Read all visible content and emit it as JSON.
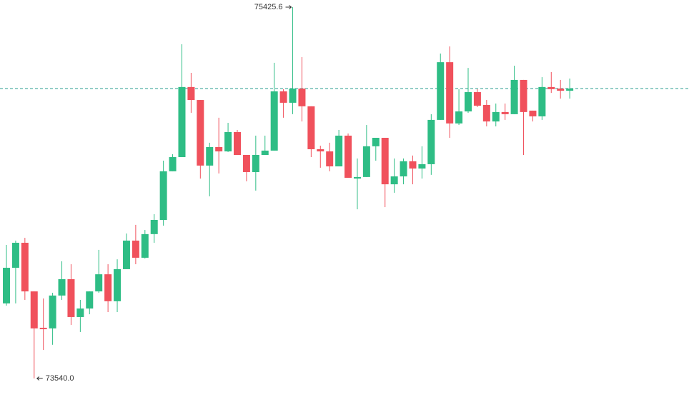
{
  "chart_data": {
    "type": "candlestick",
    "up_color": "#2ebd85",
    "down_color": "#f0515c",
    "last_price_line": true,
    "high_annotation": "75425.6",
    "low_annotation": "73540.0",
    "open": [
      73921,
      74102,
      74229,
      73982,
      73797,
      73794,
      73961,
      74044,
      73852,
      73895,
      73982,
      74069,
      73932,
      74095,
      74240,
      74153,
      74273,
      74345,
      74592,
      74664,
      75020,
      74954,
      74621,
      74715,
      74693,
      74791,
      74675,
      74588,
      74675,
      74697,
      74998,
      74940,
      75012,
      74922,
      74704,
      74693,
      74617,
      74773,
      74555,
      74563,
      74719,
      74762,
      74526,
      74566,
      74643,
      74606,
      74628,
      74853,
      75146,
      74835,
      74896,
      74994,
      74929,
      74845,
      74893,
      74882,
      75056,
      74900,
      74871,
      75020,
      75012,
      75001
    ],
    "high": [
      74218,
      74240,
      74254,
      73982,
      73946,
      73975,
      74135,
      74120,
      73939,
      73982,
      74193,
      74120,
      74145,
      74276,
      74320,
      74294,
      74374,
      74646,
      74679,
      75237,
      75092,
      74954,
      74737,
      74864,
      74838,
      74802,
      74675,
      74773,
      74773,
      75143,
      75009,
      75425.6,
      75172,
      74922,
      74722,
      74737,
      74802,
      74784,
      74657,
      74827,
      74762,
      74762,
      74657,
      74657,
      74672,
      74719,
      74882,
      75190,
      75226,
      75009,
      75117,
      75009,
      74954,
      74936,
      74936,
      75128,
      75056,
      74900,
      75070,
      75096,
      75056,
      75063
    ],
    "low": [
      73910,
      73921,
      73939,
      73540,
      73685,
      73711,
      73939,
      73812,
      73776,
      73866,
      73975,
      73877,
      73877,
      74095,
      74120,
      74149,
      74229,
      74316,
      74592,
      74664,
      74889,
      74555,
      74465,
      74581,
      74690,
      74675,
      74541,
      74494,
      74675,
      74697,
      74864,
      74882,
      74845,
      74664,
      74610,
      74592,
      74617,
      74559,
      74399,
      74563,
      74646,
      74410,
      74483,
      74526,
      74526,
      74555,
      74574,
      74853,
      74762,
      74827,
      74889,
      74918,
      74820,
      74820,
      74853,
      74882,
      74675,
      74845,
      74853,
      74990,
      74961,
      74961
    ],
    "close": [
      74102,
      74229,
      73982,
      73794,
      73790,
      73961,
      74044,
      73852,
      73895,
      73982,
      74069,
      73932,
      74095,
      74240,
      74153,
      74273,
      74345,
      74592,
      74664,
      75020,
      74954,
      74621,
      74715,
      74693,
      74791,
      74675,
      74588,
      74675,
      74697,
      74998,
      74940,
      75012,
      74922,
      74704,
      74693,
      74617,
      74773,
      74559,
      74563,
      74719,
      74762,
      74526,
      74566,
      74643,
      74606,
      74628,
      74853,
      75146,
      74835,
      74896,
      74994,
      74925,
      74845,
      74893,
      74882,
      75056,
      74893,
      74871,
      75020,
      75009,
      75001,
      75012
    ]
  }
}
